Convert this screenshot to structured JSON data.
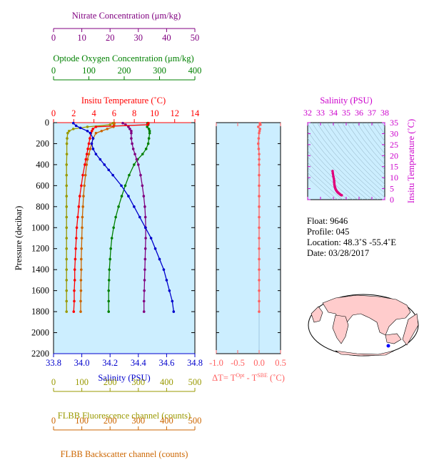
{
  "colors": {
    "nitrate": "#800080",
    "oxygen": "#008000",
    "temperature": "#ff0000",
    "salinity": "#0000cc",
    "fluorescence": "#999900",
    "backscatter": "#cc6600",
    "delta_t": "#ff6060",
    "ts_axis": "#cc00cc",
    "panel_bg": "#cceeff"
  },
  "axes": {
    "nitrate": {
      "label": "Nitrate Concentration (μm/kg)",
      "range": [
        0,
        50
      ],
      "ticks": [
        "0",
        "10",
        "20",
        "30",
        "40",
        "50"
      ]
    },
    "oxygen": {
      "label": "Optode Oxygen Concentration (μm/kg)",
      "range": [
        0,
        400
      ],
      "ticks": [
        "0",
        "100",
        "200",
        "300",
        "400"
      ]
    },
    "temperature": {
      "label": "Insitu Temperature (˚C)",
      "range": [
        0,
        14
      ],
      "ticks": [
        "0",
        "2",
        "4",
        "6",
        "8",
        "10",
        "12",
        "14"
      ]
    },
    "salinity": {
      "label": "Salinity (PSU)",
      "range": [
        33.8,
        34.8
      ],
      "ticks": [
        "33.8",
        "34.0",
        "34.2",
        "34.4",
        "34.6",
        "34.8"
      ]
    },
    "pressure": {
      "label": "Pressure (decibar)",
      "range": [
        0,
        2200
      ],
      "ticks": [
        "0",
        "200",
        "400",
        "600",
        "800",
        "1000",
        "1200",
        "1400",
        "1600",
        "1800",
        "2000",
        "2200"
      ]
    },
    "fluorescence": {
      "label": "FLBB Fluorescence channel (counts)",
      "range": [
        0,
        500
      ],
      "ticks": [
        "0",
        "100",
        "200",
        "300",
        "400",
        "500"
      ]
    },
    "backscatter": {
      "label": "FLBB Backscatter channel (counts)",
      "range": [
        0,
        500
      ],
      "ticks": [
        "0",
        "100",
        "200",
        "300",
        "400",
        "500"
      ]
    },
    "delta_t": {
      "label_prefix": "ΔT= T",
      "label_sup1": "Opt",
      "label_mid": " - T",
      "label_sup2": "SBE",
      "label_suffix": " (˚C)",
      "range": [
        -1.0,
        0.5
      ],
      "ticks": [
        "-1.0",
        "-0.5",
        "0.0",
        "0.5"
      ]
    },
    "ts_salinity": {
      "label": "Salinity (PSU)",
      "range": [
        32,
        38
      ],
      "ticks": [
        "32",
        "33",
        "34",
        "35",
        "36",
        "37",
        "38"
      ]
    },
    "ts_temperature": {
      "label": "Insitu Temperature (˚C)",
      "range": [
        0,
        35
      ],
      "ticks": [
        "0",
        "5",
        "10",
        "15",
        "20",
        "25",
        "30",
        "35"
      ]
    }
  },
  "info": {
    "float": "Float:  9646",
    "profile": "Profile:  045",
    "location": "Location:  48.3˚S  -55.4˚E",
    "date": "Date:  03/28/2017"
  },
  "chart_data": [
    {
      "type": "line",
      "name": "temperature",
      "pressure": [
        5,
        20,
        40,
        60,
        80,
        100,
        150,
        200,
        250,
        300,
        350,
        400,
        500,
        600,
        700,
        800,
        900,
        1000,
        1100,
        1200,
        1300,
        1400,
        1500,
        1600,
        1700,
        1800
      ],
      "values": [
        9.4,
        9.3,
        4.2,
        3.9,
        3.8,
        3.7,
        3.6,
        3.5,
        3.4,
        3.3,
        3.2,
        3.1,
        2.9,
        2.75,
        2.6,
        2.5,
        2.4,
        2.3,
        2.25,
        2.2,
        2.15,
        2.1,
        2.1,
        2.05,
        2.05,
        2.0
      ]
    },
    {
      "type": "line",
      "name": "salinity",
      "pressure": [
        5,
        30,
        50,
        80,
        100,
        150,
        200,
        250,
        300,
        350,
        400,
        450,
        500,
        600,
        700,
        800,
        900,
        1000,
        1100,
        1200,
        1300,
        1400,
        1500,
        1600,
        1700,
        1800
      ],
      "values": [
        33.94,
        33.96,
        33.99,
        34.04,
        34.06,
        34.08,
        34.07,
        34.08,
        34.1,
        34.13,
        34.16,
        34.19,
        34.22,
        34.28,
        34.33,
        34.37,
        34.41,
        34.45,
        34.49,
        34.52,
        34.55,
        34.58,
        34.6,
        34.62,
        34.64,
        34.65
      ]
    },
    {
      "type": "line",
      "name": "nitrate",
      "pressure": [
        5,
        20,
        40,
        60,
        80,
        100,
        150,
        200,
        250,
        300,
        350,
        400,
        500,
        600,
        700,
        800,
        900,
        1000,
        1100,
        1200,
        1300,
        1400,
        1500,
        1600,
        1700,
        1800
      ],
      "values": [
        24.5,
        25.5,
        26.5,
        27.0,
        27.5,
        27.5,
        27.5,
        27.8,
        28.2,
        28.8,
        29.4,
        30.0,
        30.8,
        31.4,
        31.9,
        32.3,
        32.5,
        32.6,
        32.6,
        32.5,
        32.4,
        32.3,
        32.2,
        32.1,
        32.0,
        32.0
      ]
    },
    {
      "type": "line",
      "name": "oxygen",
      "pressure": [
        5,
        20,
        40,
        60,
        80,
        100,
        150,
        200,
        250,
        300,
        350,
        400,
        500,
        600,
        700,
        800,
        900,
        1000,
        1100,
        1200,
        1300,
        1400,
        1500,
        1600,
        1700,
        1800
      ],
      "values": [
        266,
        268,
        265,
        270,
        272,
        272,
        270,
        268,
        262,
        252,
        238,
        228,
        214,
        203,
        193,
        184,
        176,
        170,
        165,
        162,
        160,
        158,
        157,
        156,
        156,
        156
      ]
    },
    {
      "type": "line",
      "name": "fluorescence",
      "pressure": [
        5,
        20,
        40,
        60,
        80,
        100,
        150,
        200,
        300,
        400,
        500,
        600,
        700,
        800,
        900,
        1000,
        1100,
        1200,
        1300,
        1400,
        1500,
        1600,
        1700,
        1800
      ],
      "values": [
        210,
        200,
        120,
        70,
        55,
        50,
        48,
        47,
        47,
        46,
        46,
        46,
        46,
        46,
        46,
        46,
        46,
        46,
        46,
        46,
        46,
        46,
        46,
        46
      ],
      "axis": "fluorescence"
    },
    {
      "type": "line",
      "name": "backscatter",
      "pressure": [
        5,
        20,
        40,
        60,
        80,
        100,
        150,
        200,
        250,
        300,
        350,
        400,
        500,
        600,
        700,
        800,
        900,
        1000,
        1100,
        1200,
        1300,
        1400,
        1500,
        1600,
        1700,
        1800
      ],
      "values": [
        215,
        214,
        212,
        190,
        170,
        150,
        140,
        135,
        130,
        125,
        120,
        117,
        113,
        109,
        106,
        104,
        102,
        101,
        100,
        99,
        98,
        98,
        97,
        97,
        96,
        96
      ],
      "axis": "backscatter"
    },
    {
      "type": "scatter",
      "name": "delta_t",
      "pressure": [
        5,
        20,
        40,
        60,
        80,
        100,
        150,
        200,
        250,
        300,
        350,
        400,
        500,
        600,
        700,
        800,
        900,
        1000,
        1100,
        1200,
        1300,
        1400,
        1500,
        1600,
        1700,
        1800
      ],
      "values": [
        0.02,
        0.03,
        -0.02,
        0.02,
        0.01,
        0.0,
        -0.01,
        -0.02,
        -0.01,
        0.0,
        0.0,
        0.0,
        0.0,
        0.0,
        0.0,
        0.0,
        0.0,
        0.0,
        0.0,
        0.0,
        0.0,
        0.0,
        0.0,
        0.0,
        0.0,
        0.0
      ]
    },
    {
      "type": "scatter",
      "name": "ts_diagram",
      "salinity": [
        33.94,
        33.96,
        34.0,
        34.04,
        34.06,
        34.07,
        34.08,
        34.1,
        34.13,
        34.16,
        34.2,
        34.25,
        34.3,
        34.35,
        34.4,
        34.45,
        34.5,
        34.55,
        34.6,
        34.65
      ],
      "temperature": [
        13.0,
        12.0,
        10.5,
        9.5,
        8.5,
        7.8,
        7.0,
        6.2,
        5.6,
        5.0,
        4.5,
        4.0,
        3.6,
        3.3,
        3.0,
        2.8,
        2.5,
        2.3,
        2.1,
        2.0
      ]
    }
  ]
}
